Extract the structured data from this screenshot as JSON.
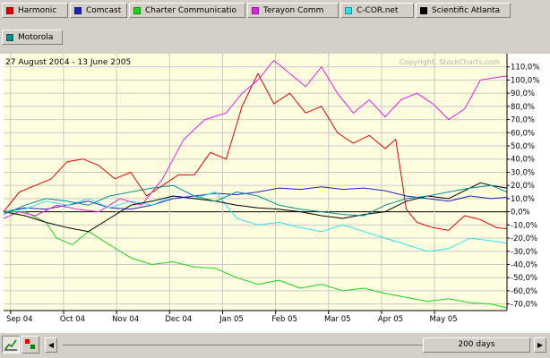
{
  "legend": [
    {
      "label": "Harmonic",
      "color": "#e00000"
    },
    {
      "label": "Comcast",
      "color": "#2020c0"
    },
    {
      "label": "Charter Communicatio",
      "color": "#20d020"
    },
    {
      "label": "Terayon Comm",
      "color": "#e020e0"
    },
    {
      "label": "C-COR.net",
      "color": "#30e0f0"
    },
    {
      "label": "Scientific Atlanta",
      "color": "#000000"
    },
    {
      "label": "Motorola",
      "color": "#009090"
    }
  ],
  "chart_data": {
    "type": "line",
    "title": "27 August 2004 - 13 June 2005",
    "watermark": "Copyright, StockCharts.com",
    "xlabel": "",
    "ylabel": "",
    "x_range": [
      0,
      9.5
    ],
    "x_ticks": [
      {
        "label": "Sep 04",
        "x": 0.2
      },
      {
        "label": "Oct 04",
        "x": 1.2
      },
      {
        "label": "Nov 04",
        "x": 2.2
      },
      {
        "label": "Dec 04",
        "x": 3.2
      },
      {
        "label": "Jan 05",
        "x": 4.2
      },
      {
        "label": "Feb 05",
        "x": 5.2
      },
      {
        "label": "Mar 05",
        "x": 6.2
      },
      {
        "label": "Apr 05",
        "x": 7.2
      },
      {
        "label": "May 05",
        "x": 8.2
      }
    ],
    "ylim": [
      -75,
      120
    ],
    "y_ticks": [
      110,
      100,
      90,
      80,
      70,
      60,
      50,
      40,
      30,
      20,
      10,
      0,
      -10,
      -20,
      -30,
      -40,
      -50,
      -60,
      -70
    ],
    "y_tick_labels": [
      "110,0%",
      "100,0%",
      "90,0%",
      "80,0%",
      "70,0%",
      "60,0%",
      "50,0%",
      "40,0%",
      "30,0%",
      "20,0%",
      "10,0%",
      "0,0%",
      "-10,0%",
      "-20,0%",
      "-30,0%",
      "-40,0%",
      "-50,0%",
      "-60,0%",
      "-70,0%"
    ],
    "series": [
      {
        "name": "Harmonic",
        "color": "#e00000",
        "x": [
          0,
          0.3,
          0.6,
          0.9,
          1.2,
          1.5,
          1.8,
          2.1,
          2.4,
          2.7,
          3.0,
          3.3,
          3.6,
          3.9,
          4.2,
          4.5,
          4.8,
          5.1,
          5.4,
          5.7,
          6.0,
          6.3,
          6.6,
          6.9,
          7.2,
          7.4,
          7.6,
          7.8,
          8.1,
          8.4,
          8.7,
          9.0,
          9.3,
          9.5
        ],
        "y": [
          0,
          15,
          20,
          25,
          38,
          40,
          35,
          25,
          30,
          12,
          20,
          28,
          28,
          45,
          40,
          80,
          105,
          82,
          90,
          75,
          80,
          60,
          52,
          58,
          48,
          55,
          2,
          -8,
          -12,
          -14,
          -3,
          -6,
          -12,
          -13
        ]
      },
      {
        "name": "Comcast",
        "color": "#2020c0",
        "x": [
          0,
          0.4,
          0.8,
          1.2,
          1.6,
          2.0,
          2.4,
          2.8,
          3.2,
          3.6,
          4.0,
          4.4,
          4.8,
          5.2,
          5.6,
          6.0,
          6.4,
          6.8,
          7.2,
          7.6,
          8.0,
          8.4,
          8.8,
          9.2,
          9.5
        ],
        "y": [
          0,
          3,
          2,
          5,
          8,
          3,
          2,
          5,
          10,
          12,
          14,
          13,
          15,
          18,
          17,
          19,
          17,
          18,
          16,
          12,
          10,
          8,
          12,
          10,
          11
        ]
      },
      {
        "name": "Charter Communicatio",
        "color": "#20d020",
        "x": [
          0,
          0.4,
          0.8,
          1.0,
          1.3,
          1.6,
          2.0,
          2.4,
          2.8,
          3.2,
          3.6,
          4.0,
          4.4,
          4.8,
          5.2,
          5.6,
          6.0,
          6.4,
          6.8,
          7.2,
          7.6,
          8.0,
          8.4,
          8.8,
          9.2,
          9.5
        ],
        "y": [
          0,
          0,
          -8,
          -20,
          -25,
          -15,
          -25,
          -35,
          -40,
          -38,
          -42,
          -43,
          -50,
          -55,
          -52,
          -58,
          -55,
          -60,
          -58,
          -62,
          -65,
          -68,
          -66,
          -69,
          -70,
          -73
        ]
      },
      {
        "name": "Terayon Comm",
        "color": "#e020e0",
        "x": [
          0,
          0.3,
          0.6,
          1.0,
          1.4,
          1.8,
          2.2,
          2.6,
          3.0,
          3.4,
          3.8,
          4.2,
          4.5,
          4.8,
          5.1,
          5.4,
          5.7,
          6.0,
          6.3,
          6.6,
          6.9,
          7.2,
          7.5,
          7.8,
          8.1,
          8.4,
          8.7,
          9.0,
          9.3,
          9.5
        ],
        "y": [
          -5,
          0,
          -3,
          5,
          2,
          0,
          10,
          5,
          25,
          55,
          70,
          75,
          90,
          100,
          115,
          105,
          95,
          110,
          90,
          75,
          85,
          72,
          85,
          90,
          82,
          70,
          78,
          100,
          102,
          103
        ]
      },
      {
        "name": "C-COR.net",
        "color": "#30e0f0",
        "x": [
          0,
          0.4,
          0.8,
          1.2,
          1.6,
          2.0,
          2.4,
          2.8,
          3.2,
          3.6,
          4.0,
          4.4,
          4.8,
          5.2,
          5.6,
          6.0,
          6.4,
          6.8,
          7.2,
          7.6,
          8.0,
          8.4,
          8.8,
          9.2,
          9.5
        ],
        "y": [
          0,
          2,
          8,
          5,
          10,
          3,
          8,
          5,
          12,
          10,
          15,
          -5,
          -10,
          -8,
          -12,
          -15,
          -10,
          -15,
          -20,
          -25,
          -30,
          -28,
          -20,
          -22,
          -24
        ]
      },
      {
        "name": "Scientific Atlanta",
        "color": "#000000",
        "x": [
          0,
          0.4,
          0.8,
          1.2,
          1.6,
          2.0,
          2.4,
          2.8,
          3.2,
          3.6,
          4.0,
          4.4,
          4.8,
          5.2,
          5.6,
          6.0,
          6.4,
          6.8,
          7.2,
          7.6,
          8.0,
          8.4,
          8.8,
          9.0,
          9.2,
          9.5
        ],
        "y": [
          0,
          -3,
          -8,
          -12,
          -15,
          -5,
          5,
          8,
          12,
          10,
          8,
          5,
          3,
          2,
          0,
          -3,
          -5,
          -2,
          0,
          8,
          12,
          10,
          18,
          22,
          20,
          18
        ]
      },
      {
        "name": "Motorola",
        "color": "#009090",
        "x": [
          0,
          0.4,
          0.8,
          1.2,
          1.6,
          2.0,
          2.4,
          2.8,
          3.2,
          3.6,
          4.0,
          4.4,
          4.8,
          5.2,
          5.6,
          6.0,
          6.4,
          6.8,
          7.2,
          7.6,
          8.0,
          8.4,
          8.8,
          9.2,
          9.5
        ],
        "y": [
          -2,
          5,
          10,
          8,
          5,
          12,
          15,
          18,
          20,
          12,
          8,
          15,
          12,
          5,
          2,
          0,
          -2,
          -3,
          5,
          10,
          12,
          15,
          18,
          20,
          15
        ]
      }
    ]
  },
  "bottom_bar": {
    "range_label": "200 days",
    "left_arrow": "◀",
    "right_arrow": "▶"
  }
}
